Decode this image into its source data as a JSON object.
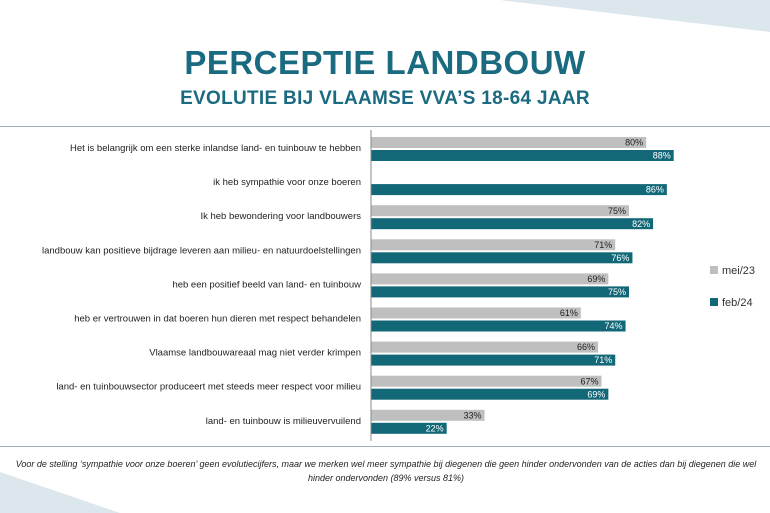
{
  "title": "PERCEPTIE LANDBOUW",
  "subtitle": "EVOLUTIE BIJ VLAAMSE VVA’S 18-64 JAAR",
  "footnote": "Voor de stelling ‘sympathie voor onze boeren’ geen evolutiecijfers, maar we merken wel meer sympathie bij diegenen die geen hinder ondervonden van de acties dan bij diegenen die wel hinder ondervonden (89% versus 81%)",
  "colors": {
    "accent": "#1a6a80",
    "series_1": "#bfbfbf",
    "series_2": "#136878",
    "deco": "#dbe7ec"
  },
  "chart_data": {
    "type": "bar",
    "orientation": "horizontal",
    "categories": [
      "Het is belangrijk om een sterke inlandse land- en tuinbouw te hebben",
      "ik heb sympathie voor onze boeren",
      "Ik heb bewondering voor landbouwers",
      "landbouw kan positieve bijdrage leveren aan milieu- en natuurdoelstellingen",
      "heb een positief beeld van land- en tuinbouw",
      "heb er vertrouwen in dat boeren hun dieren met respect behandelen",
      "Vlaamse landbouwareaal mag niet verder krimpen",
      "land- en tuinbouwsector produceert met steeds meer respect voor milieu",
      "land- en tuinbouw is milieuvervuilend"
    ],
    "series": [
      {
        "name": "mei/23",
        "color": "#bfbfbf",
        "values": [
          80,
          null,
          75,
          71,
          69,
          61,
          66,
          67,
          33
        ]
      },
      {
        "name": "feb/24",
        "color": "#136878",
        "values": [
          88,
          86,
          82,
          76,
          75,
          74,
          71,
          69,
          22
        ]
      }
    ],
    "xlim": [
      0,
      100
    ],
    "value_suffix": "%",
    "legend": "right",
    "grid": false
  }
}
